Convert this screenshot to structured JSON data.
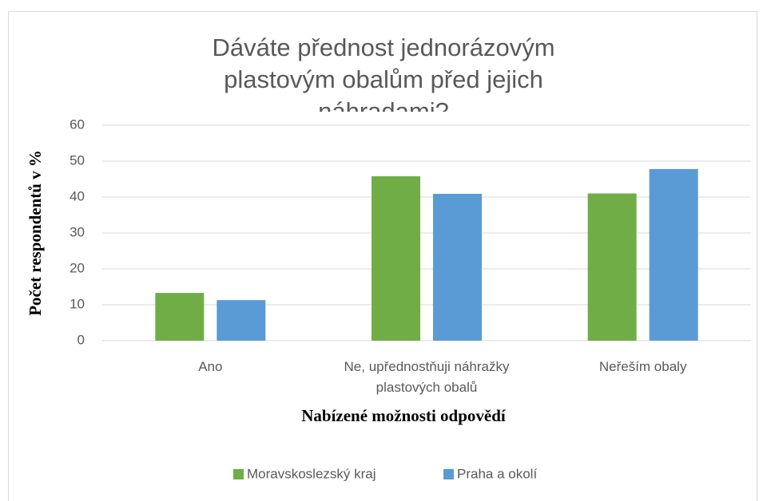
{
  "chart_data": {
    "type": "bar",
    "title": "Dáváte přednost jednorázovým plastovým obalům před jejich náhradami?",
    "y_label": "Počet respondentů v %",
    "x_label": "Nabízené možnosti odpovědí",
    "categories": [
      "Ano",
      "Ne, upřednostňuji náhražky plastových obalů",
      "Neřeším obaly"
    ],
    "series": [
      {
        "name": "Moravskoslezský kraj",
        "color": "#70ad47",
        "values": [
          13.3,
          45.8,
          41
        ]
      },
      {
        "name": "Praha a okolí",
        "color": "#5b9bd5",
        "values": [
          11.3,
          40.9,
          47.8
        ]
      }
    ],
    "ylim": [
      0,
      60
    ],
    "yticks": [
      0,
      10,
      20,
      30,
      40,
      50,
      60
    ],
    "grid": true,
    "legend": "bottom"
  }
}
